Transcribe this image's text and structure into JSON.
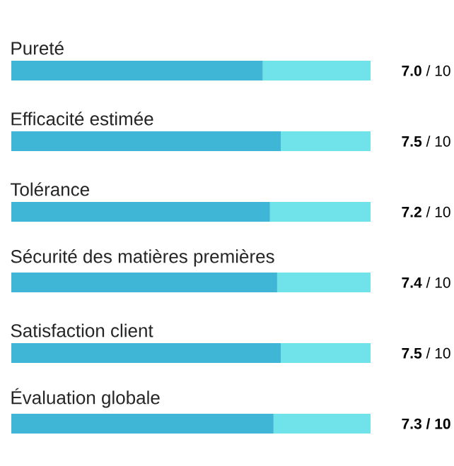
{
  "chart_data": {
    "type": "bar",
    "orientation": "horizontal",
    "stacked": true,
    "xlim": [
      0,
      10
    ],
    "categories": [
      "Pureté",
      "Efficacité estimée",
      "Tolérance",
      "Sécurité des matières premières",
      "Satisfaction client",
      "Évaluation globale"
    ],
    "series": [
      {
        "color": "#3fb6d5",
        "values": [
          7.0,
          7.5,
          7.2,
          7.4,
          7.5,
          7.3
        ],
        "value_labels": [
          "**7.0** / 10",
          "**7.5** / 10",
          "**7.2** / 10",
          "**7.4** / 10",
          "**7.5** / 10",
          "**7.3 / 10**"
        ]
      },
      {
        "color": "#6fe3e9",
        "values": [
          3.0,
          2.5,
          2.8,
          2.6,
          2.5,
          2.7
        ]
      }
    ]
  }
}
